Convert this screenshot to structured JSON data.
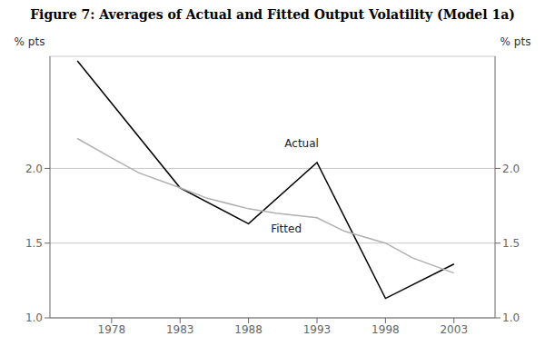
{
  "chart_data": {
    "type": "line",
    "title": "Figure 7: Averages of Actual and Fitted Output Volatility (Model 1a)",
    "y_label": "% pts",
    "y2_label": "% pts",
    "series": [
      {
        "color": "#000000",
        "x": [
          1975.5,
          1983,
          1988,
          1993,
          1998,
          2003
        ],
        "values": [
          2.72,
          1.87,
          1.63,
          2.04,
          1.13,
          1.36
        ]
      },
      {
        "color": "#b0b0b0",
        "x": [
          1975.5,
          1978,
          1980,
          1983,
          1985,
          1988,
          1990,
          1993,
          1995,
          1998,
          2000,
          2003
        ],
        "values": [
          2.2,
          2.07,
          1.97,
          1.87,
          1.8,
          1.73,
          1.7,
          1.67,
          1.58,
          1.5,
          1.4,
          1.3
        ]
      }
    ],
    "xlim": [
      1973.5,
      2006
    ],
    "xticks": [
      1978,
      1983,
      1988,
      1993,
      1998,
      2003
    ],
    "ylim": [
      1.0,
      2.75
    ],
    "yticks": [
      {
        "value": 1.0,
        "label": "1.0"
      },
      {
        "value": 1.5,
        "label": "1.5"
      },
      {
        "value": 2.0,
        "label": "2.0"
      }
    ],
    "y2lim": [
      1.0,
      2.75
    ],
    "y2ticks": [
      {
        "value": 1.0,
        "label": "1.0"
      },
      {
        "value": 1.5,
        "label": "1.5"
      },
      {
        "value": 2.0,
        "label": "2.0"
      }
    ],
    "grid": true,
    "annotations": [
      {
        "text": "Actual",
        "x": 1990.5,
        "y": 2.17
      },
      {
        "text": "Fitted",
        "x": 1989.5,
        "y": 1.595
      }
    ]
  }
}
